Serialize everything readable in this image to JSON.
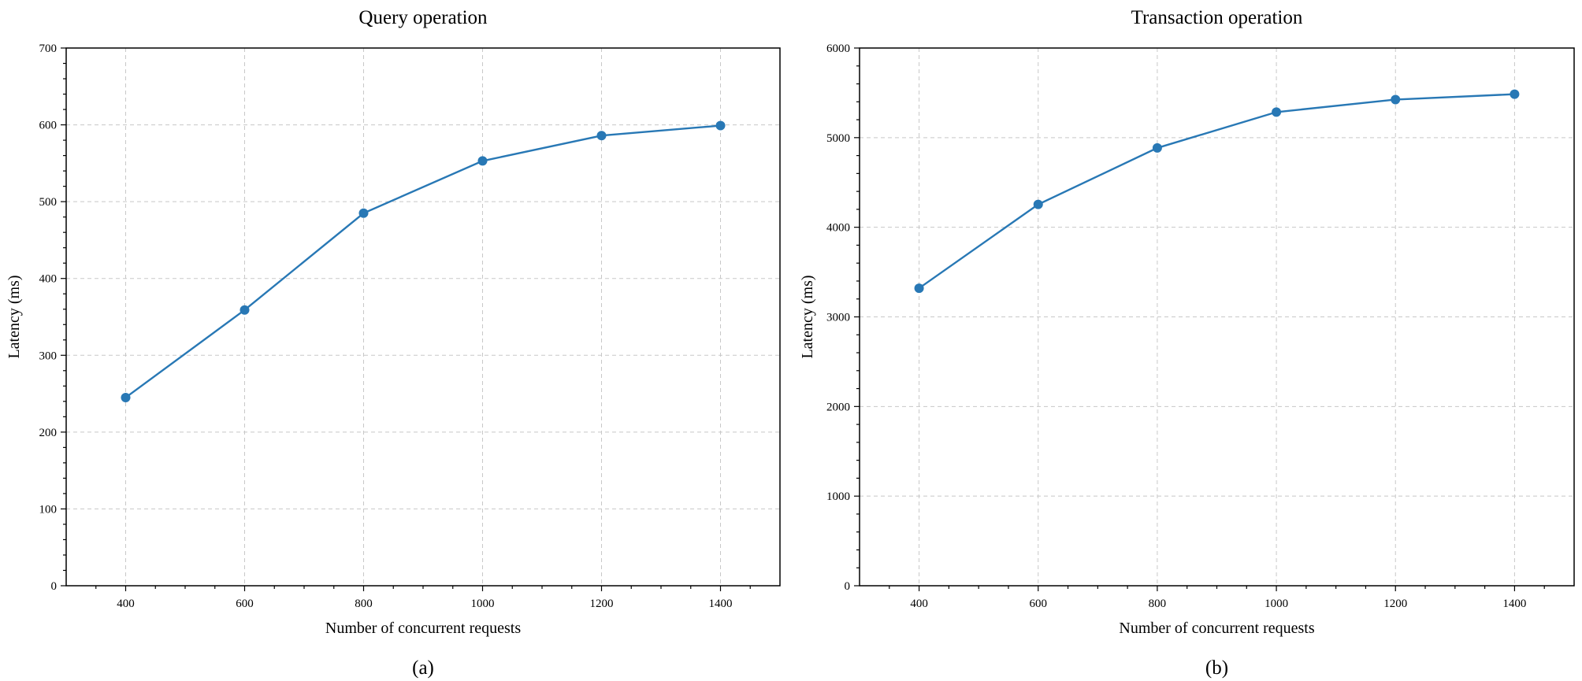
{
  "chart_data": [
    {
      "type": "line",
      "title": "Query operation",
      "xlabel": "Number of concurrent requests",
      "ylabel": "Latency (ms)",
      "caption": "(a)",
      "x": [
        400,
        600,
        800,
        1000,
        1200,
        1400
      ],
      "series": [
        {
          "name": "Query",
          "values": [
            245,
            359,
            485,
            553,
            586,
            599
          ]
        }
      ],
      "xlim": [
        300,
        1500
      ],
      "ylim": [
        0,
        700
      ],
      "xticks": [
        400,
        600,
        800,
        1000,
        1200,
        1400
      ],
      "yticks": [
        0,
        100,
        200,
        300,
        400,
        500,
        600,
        700
      ],
      "grid": true,
      "color": "#2878b5"
    },
    {
      "type": "line",
      "title": "Transaction operation",
      "xlabel": "Number of concurrent requests",
      "ylabel": "Latency (ms)",
      "caption": "(b)",
      "x": [
        400,
        600,
        800,
        1000,
        1200,
        1400
      ],
      "series": [
        {
          "name": "Transaction",
          "values": [
            3320,
            4255,
            4885,
            5285,
            5425,
            5485
          ]
        }
      ],
      "xlim": [
        300,
        1500
      ],
      "ylim": [
        0,
        6000
      ],
      "xticks": [
        400,
        600,
        800,
        1000,
        1200,
        1400
      ],
      "yticks": [
        0,
        1000,
        2000,
        3000,
        4000,
        5000,
        6000
      ],
      "grid": true,
      "color": "#2878b5"
    }
  ]
}
